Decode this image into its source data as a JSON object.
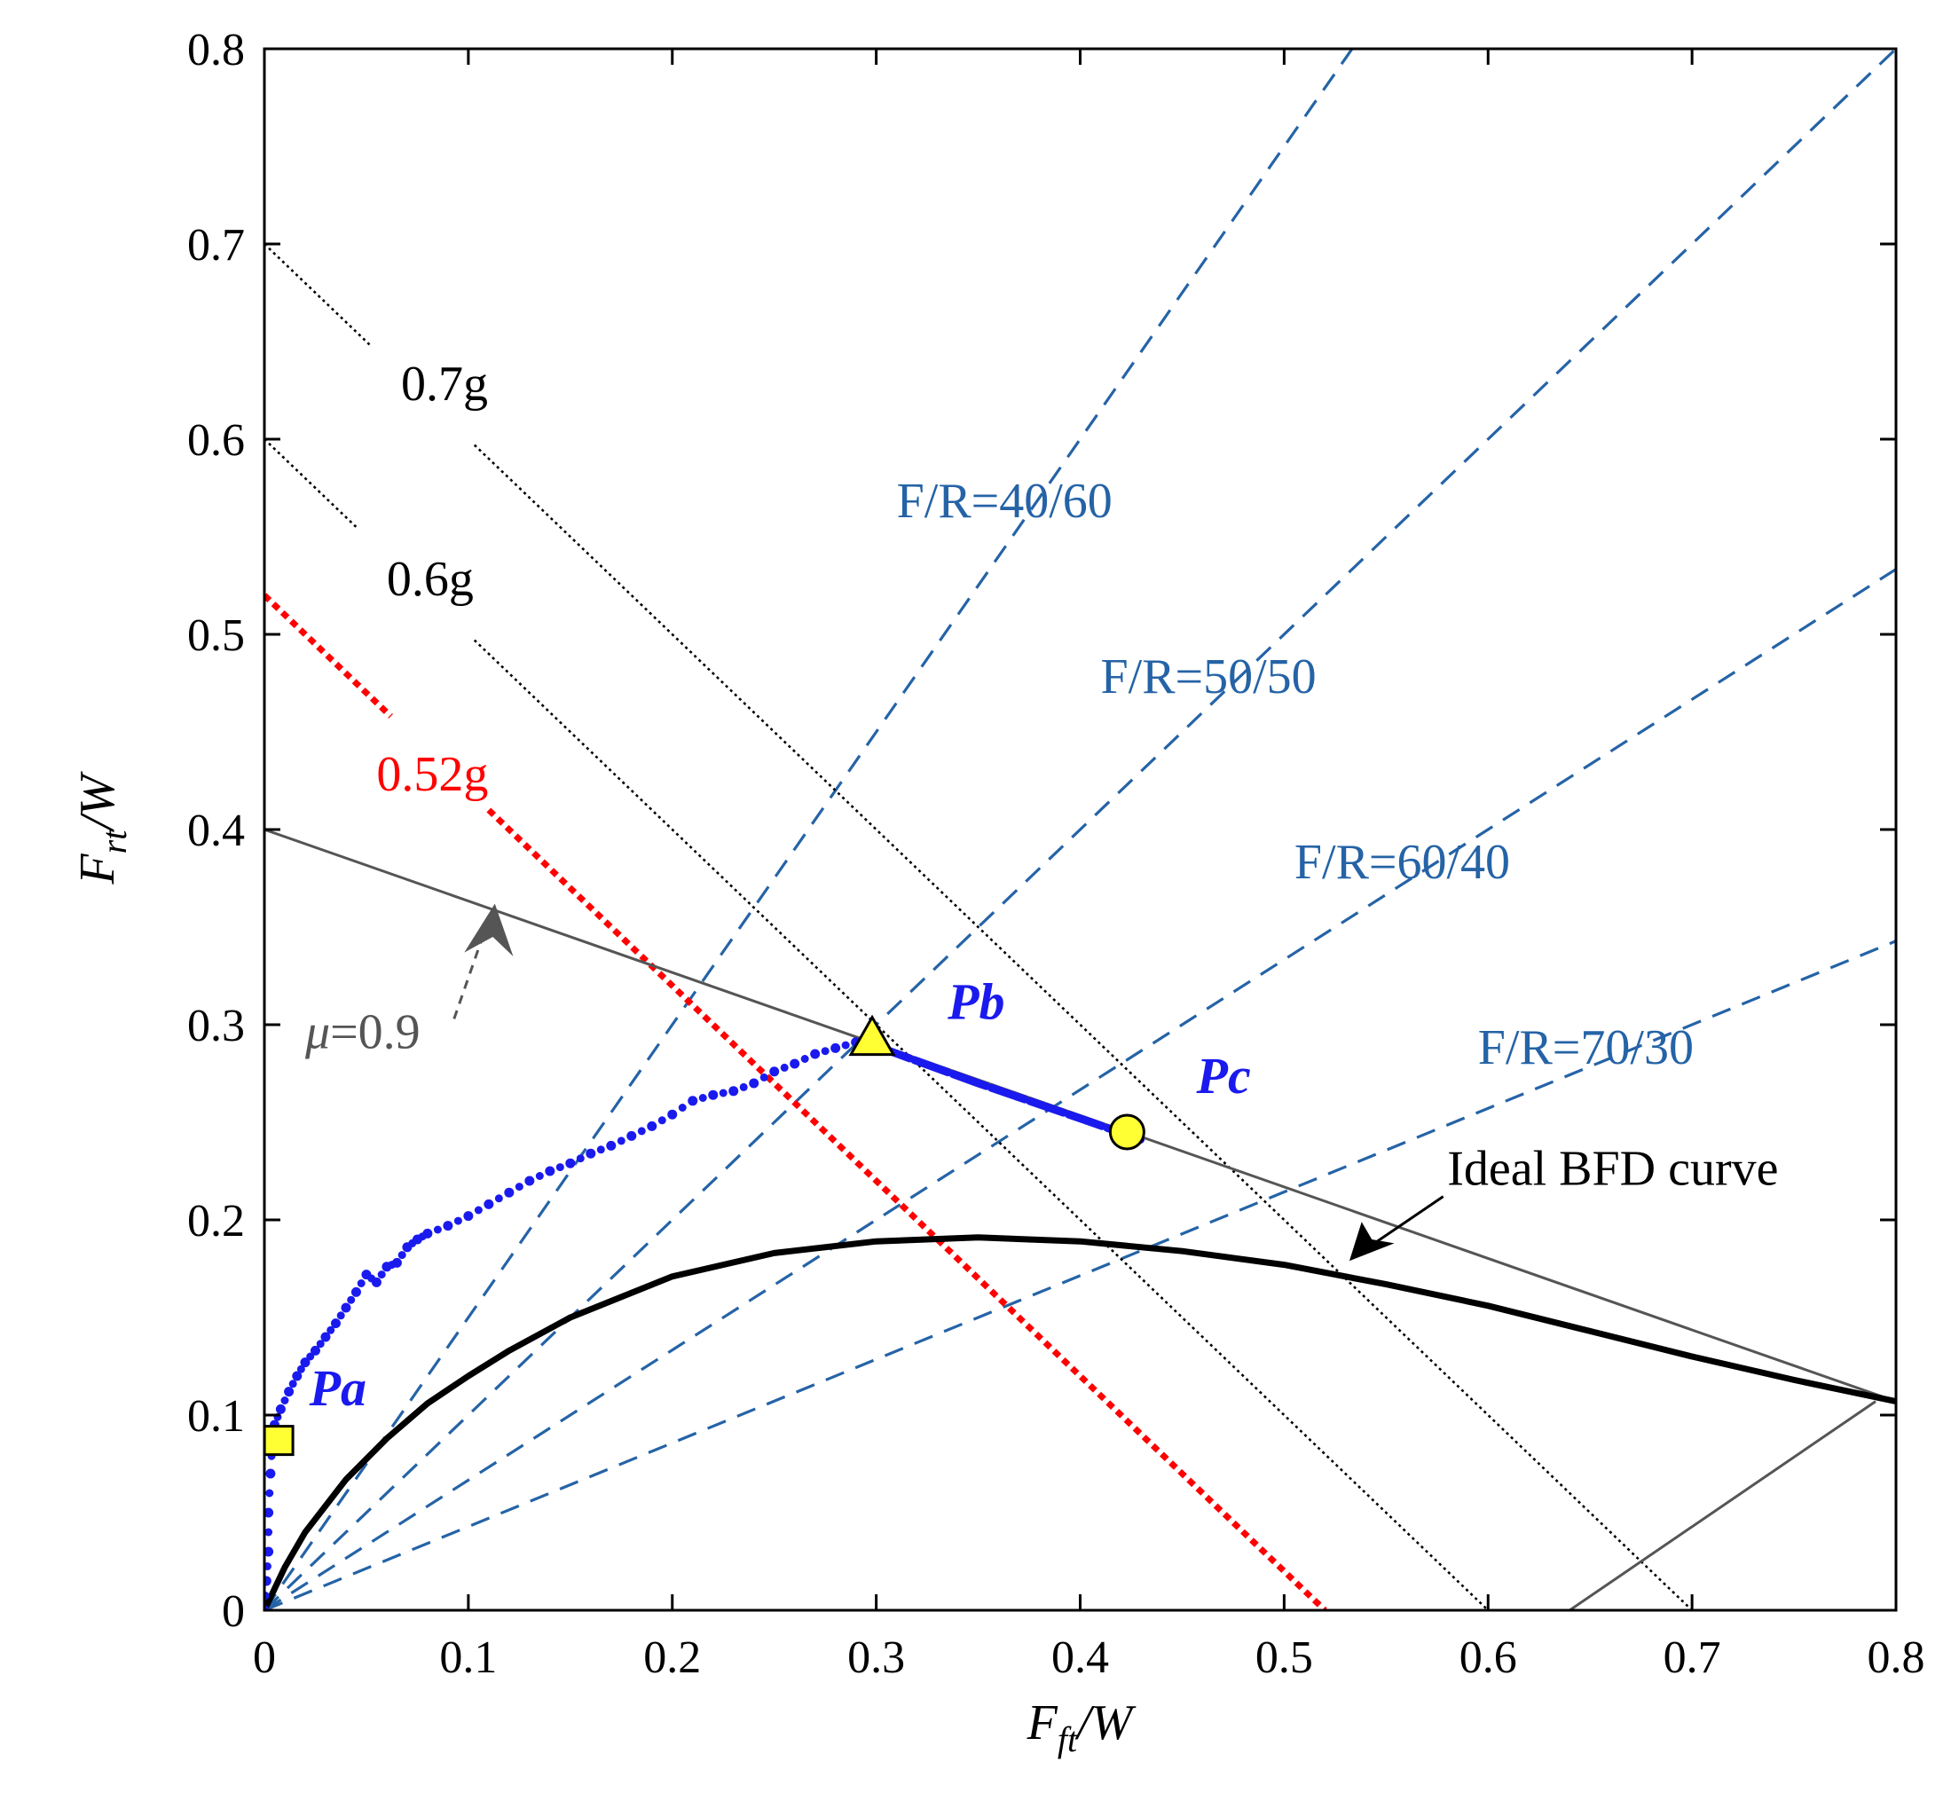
{
  "chart_data": {
    "type": "line",
    "title": "",
    "xlabel": {
      "main": "F",
      "sub": "ft",
      "tail": "/W"
    },
    "ylabel": {
      "main": "F",
      "sub": "rt",
      "tail": "/W"
    },
    "xlim": [
      0,
      0.8
    ],
    "ylim": [
      0,
      0.8
    ],
    "xticks": [
      "0",
      "0.1",
      "0.2",
      "0.3",
      "0.4",
      "0.5",
      "0.6",
      "0.7",
      "0.8"
    ],
    "yticks": [
      "0",
      "0.1",
      "0.2",
      "0.3",
      "0.4",
      "0.5",
      "0.6",
      "0.7",
      "0.8"
    ],
    "grid": false,
    "colors": {
      "ratio": "#2563a6",
      "decel": "#000000",
      "decel_red": "#ff0000",
      "mu": "#555555",
      "measured": "#1a1aee",
      "marker_fill": "#ffff33",
      "ideal": "#000000"
    },
    "ratio_lines": [
      {
        "label": "F/R=40/60",
        "slope": 1.5
      },
      {
        "label": "F/R=50/50",
        "slope": 1.0
      },
      {
        "label": "F/R=60/40",
        "slope": 0.6667
      },
      {
        "label": "F/R=70/30",
        "slope": 0.4286
      }
    ],
    "decel_lines": [
      {
        "label": "0.7g",
        "value": 0.7,
        "color": "#000000"
      },
      {
        "label": "0.6g",
        "value": 0.6,
        "color": "#000000"
      },
      {
        "label": "0.52g",
        "value": 0.52,
        "color": "#ff0000"
      }
    ],
    "mu_line": {
      "label_symbol": "μ",
      "label_value": "=0.9",
      "x": [
        0,
        0.8
      ],
      "y": [
        0.4,
        0.107
      ]
    },
    "mu_lower_line": {
      "x": [
        0.64,
        0.79
      ],
      "y": [
        0.0,
        0.107
      ]
    },
    "ideal_bfd": {
      "label": "Ideal BFD curve",
      "x": [
        0,
        0.01,
        0.02,
        0.04,
        0.06,
        0.08,
        0.1,
        0.12,
        0.15,
        0.2,
        0.25,
        0.3,
        0.35,
        0.4,
        0.45,
        0.5,
        0.55,
        0.6,
        0.65,
        0.7,
        0.75,
        0.8
      ],
      "y": [
        0,
        0.022,
        0.04,
        0.067,
        0.088,
        0.106,
        0.12,
        0.133,
        0.15,
        0.171,
        0.183,
        0.189,
        0.191,
        0.189,
        0.184,
        0.177,
        0.167,
        0.156,
        0.143,
        0.13,
        0.118,
        0.107
      ]
    },
    "measured_path": {
      "name": "measured",
      "x": [
        0,
        0.001,
        0.002,
        0.002,
        0.003,
        0.004,
        0.005,
        0.008,
        0.012,
        0.016,
        0.02,
        0.025,
        0.03,
        0.035,
        0.04,
        0.045,
        0.05,
        0.055,
        0.06,
        0.065,
        0.07,
        0.075,
        0.08,
        0.09,
        0.1,
        0.11,
        0.12,
        0.13,
        0.14,
        0.15,
        0.16,
        0.17,
        0.18,
        0.19,
        0.2,
        0.21,
        0.22,
        0.23,
        0.24,
        0.25,
        0.26,
        0.27,
        0.28,
        0.29
      ],
      "y": [
        0,
        0.015,
        0.03,
        0.05,
        0.07,
        0.088,
        0.095,
        0.103,
        0.112,
        0.12,
        0.127,
        0.133,
        0.14,
        0.147,
        0.155,
        0.163,
        0.172,
        0.168,
        0.176,
        0.178,
        0.186,
        0.19,
        0.193,
        0.197,
        0.202,
        0.208,
        0.214,
        0.22,
        0.225,
        0.229,
        0.234,
        0.238,
        0.243,
        0.248,
        0.254,
        0.261,
        0.264,
        0.266,
        0.27,
        0.276,
        0.28,
        0.285,
        0.288,
        0.291
      ]
    },
    "measured_thick": {
      "x": [
        0.3,
        0.35,
        0.4,
        0.43
      ],
      "y": [
        0.289,
        0.27,
        0.252,
        0.241
      ]
    },
    "markers": [
      {
        "name": "square",
        "label": "Pa",
        "x": 0.007,
        "y": 0.087
      },
      {
        "name": "triangle",
        "label": "Pb",
        "x": 0.298,
        "y": 0.292
      },
      {
        "name": "circle",
        "label": "Pc",
        "x": 0.423,
        "y": 0.245
      }
    ]
  }
}
